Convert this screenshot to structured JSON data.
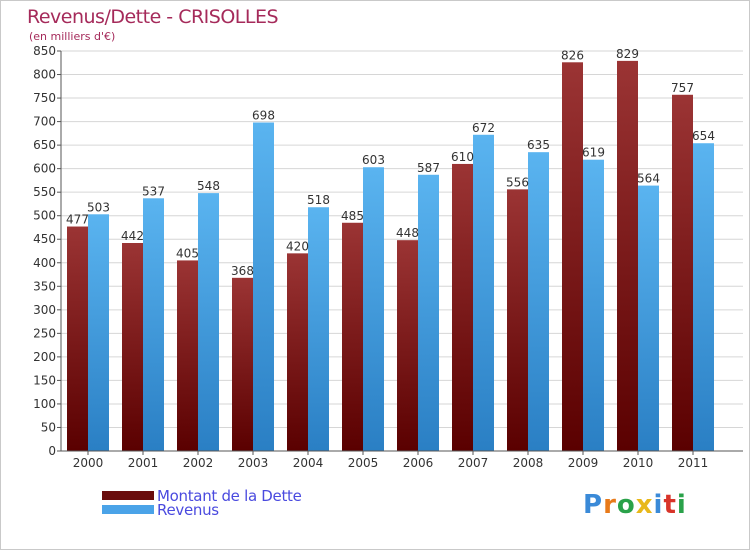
{
  "title": "Revenus/Dette - CRISOLLES",
  "subtitle": "(en milliers d'€)",
  "legend": [
    {
      "label": "Montant de la Dette",
      "color": "#7a1414"
    },
    {
      "label": "Revenus",
      "color": "#4aa3e8"
    }
  ],
  "logo": {
    "text": "Proxiti",
    "letters": [
      "P",
      "r",
      "o",
      "x",
      "i",
      "t",
      "i"
    ]
  },
  "colors": {
    "dette_top": "#9b3434",
    "dette_bottom": "#5a0000",
    "revenus_top": "#5ab4f0",
    "revenus_bottom": "#2a7fc4",
    "title": "#a52a5a",
    "legend_text": "#4a4adf"
  },
  "chart_data": {
    "type": "bar",
    "categories": [
      "2000",
      "2001",
      "2002",
      "2003",
      "2004",
      "2005",
      "2006",
      "2007",
      "2008",
      "2009",
      "2010",
      "2011"
    ],
    "series": [
      {
        "name": "Montant de la Dette",
        "values": [
          477,
          442,
          405,
          368,
          420,
          485,
          448,
          610,
          556,
          826,
          829,
          757
        ]
      },
      {
        "name": "Revenus",
        "values": [
          503,
          537,
          548,
          698,
          518,
          603,
          587,
          672,
          635,
          619,
          564,
          654
        ]
      }
    ],
    "ylim": [
      0,
      850
    ],
    "ytick_step": 50,
    "grid": true,
    "legend_position": "bottom-left"
  }
}
